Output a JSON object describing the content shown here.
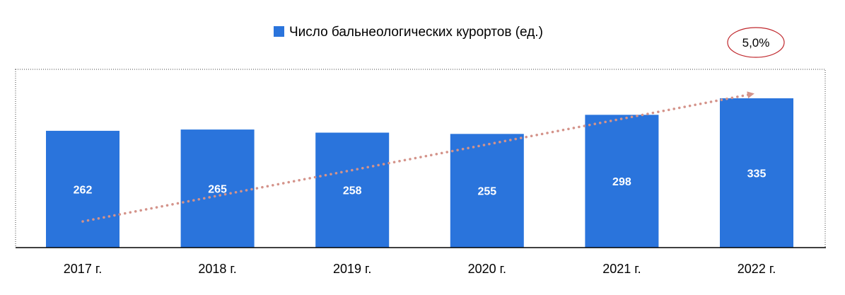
{
  "chart_data": {
    "type": "bar",
    "categories": [
      "2017 г.",
      "2018 г.",
      "2019 г.",
      "2020 г.",
      "2021 г.",
      "2022 г."
    ],
    "series": [
      {
        "name": "Число бальнеологических курортов (ед.)",
        "values": [
          262,
          265,
          258,
          255,
          298,
          335
        ]
      }
    ],
    "ylim": [
      0,
      400
    ],
    "grid": false,
    "legend": "top-center",
    "trend_annotation": "5,0%",
    "colors": {
      "bar": "#2a74dc",
      "trend": "#d4938a",
      "badge_border": "#c0282d",
      "label": "#ffffff"
    }
  }
}
